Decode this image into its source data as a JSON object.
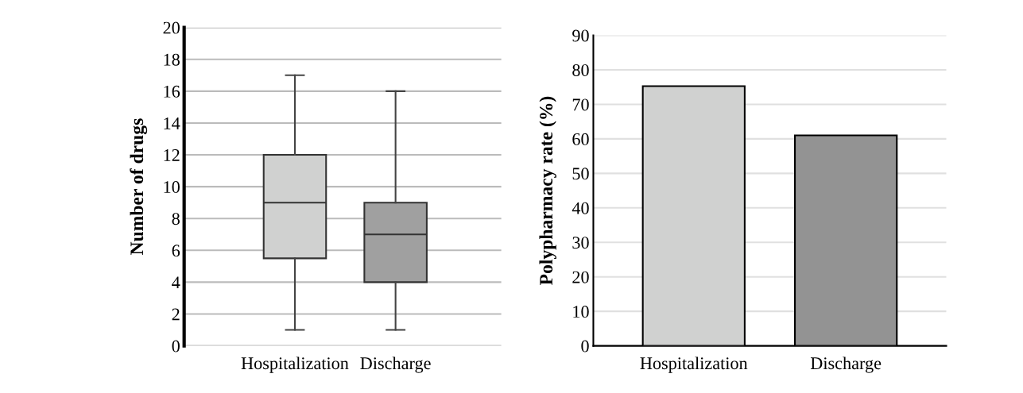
{
  "chart_data": [
    {
      "type": "box",
      "categories": [
        "Hospitalization",
        "Discharge"
      ],
      "ylabel": "Number of drugs",
      "boxes": [
        {
          "low": 1,
          "q1": 5.5,
          "median": 9,
          "q3": 12,
          "high": 17
        },
        {
          "low": 1,
          "q1": 4,
          "median": 7,
          "q3": 9,
          "high": 16
        }
      ],
      "colors": [
        "#d0d1d0",
        "#a0a0a0"
      ],
      "ylim": [
        0,
        20
      ],
      "yticks": [
        0,
        2,
        4,
        6,
        8,
        10,
        12,
        14,
        16,
        18,
        20
      ],
      "grid": "y",
      "legend": false
    },
    {
      "type": "bar",
      "categories": [
        "Hospitalization",
        "Discharge"
      ],
      "ylabel": "Polypharmacy rate (%)",
      "values": [
        75.3,
        61
      ],
      "colors": [
        "#d0d1d0",
        "#939393"
      ],
      "ylim": [
        0,
        90
      ],
      "yticks": [
        0,
        10,
        20,
        30,
        40,
        50,
        60,
        70,
        80,
        90
      ],
      "grid": "y",
      "legend": false
    }
  ]
}
